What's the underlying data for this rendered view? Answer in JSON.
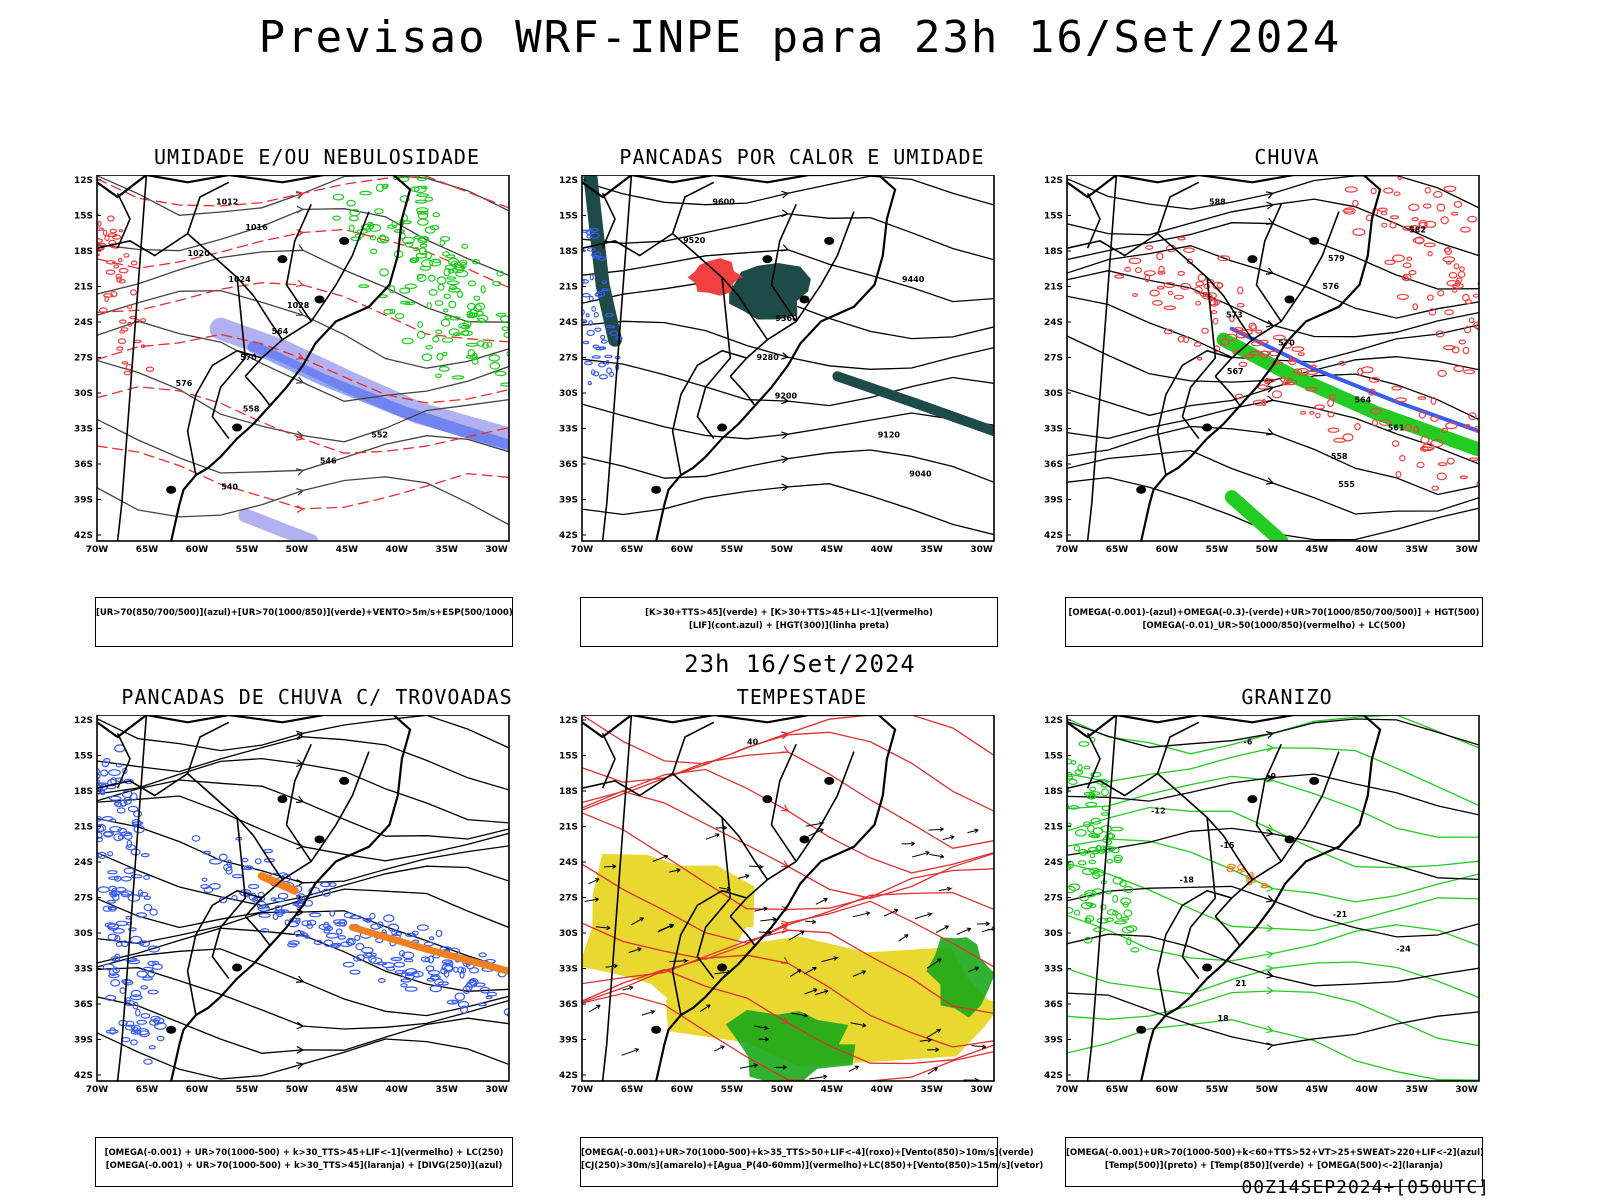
{
  "header": {
    "title": "Previsao WRF-INPE  para 23h 16/Set/2024"
  },
  "middle_title": "23h 16/Set/2024",
  "footer": "00Z14SEP2024+[050UTC]",
  "axes": {
    "lat_labels": [
      "12S",
      "15S",
      "18S",
      "21S",
      "24S",
      "27S",
      "30S",
      "33S",
      "36S",
      "39S",
      "42S"
    ],
    "lon_labels": [
      "70W",
      "65W",
      "60W",
      "55W",
      "50W",
      "45W",
      "40W",
      "35W",
      "30W"
    ]
  },
  "colors": {
    "blue": "#3a5cf0",
    "green": "#22cc22",
    "red": "#f04040",
    "orange": "#f08020",
    "yellow": "#e8d830",
    "darkteal": "#1e4a48",
    "lavender": "#a8a8f0"
  },
  "panels": [
    {
      "title": "UMIDADE E/OU NEBULOSIDADE",
      "legend": [
        "[UR>70(850/700/500)](azul)+[UR>70(1000/850)](verde)+VENTO>5m/s+ESP(500/1000)"
      ],
      "contour_labels": [
        "1012",
        "1016",
        "1020",
        "1024",
        "1028",
        "564",
        "570",
        "576",
        "558",
        "552",
        "546",
        "540"
      ]
    },
    {
      "title": "PANCADAS POR CALOR E UMIDADE",
      "legend": [
        "[K>30+TTS>45](verde) + [K>30+TTS>45+LI<-1](vermelho)",
        "[LIF](cont.azul) + [HGT(300)](linha preta)"
      ],
      "contour_labels": [
        "9600",
        "9520",
        "9440",
        "9360",
        "9280",
        "9200",
        "9120",
        "9040"
      ]
    },
    {
      "title": "CHUVA",
      "legend": [
        "[OMEGA(-0.001)-(azul)+OMEGA(-0.3)-(verde)+UR>70(1000/850/700/500)] + HGT(500)",
        "[OMEGA(-0.01)_UR>50(1000/850)(vermelho) + LC(500)"
      ],
      "contour_labels": [
        "588",
        "582",
        "579",
        "576",
        "573",
        "570",
        "567",
        "564",
        "561",
        "558",
        "555"
      ]
    },
    {
      "title": "PANCADAS DE CHUVA C/ TROVOADAS",
      "legend": [
        "[OMEGA(-0.001) + UR>70(1000-500) + k>30_TTS>45+LIF<-1](vermelho) + LC(250)",
        "[OMEGA(-0.001) + UR>70(1000-500) + k>30_TTS>45](laranja) + [DIVG(250)](azul)"
      ],
      "contour_labels": []
    },
    {
      "title": "TEMPESTADE",
      "legend": [
        "[OMEGA(-0.001)+UR>70(1000-500)+k>35_TTS>50+LIF<-4](roxo)+[Vento(850)>10m/s](verde)",
        "[CJ(250)>30m/s](amarelo)+[Agua_P(40-60mm)](vermelho)+LC(850)+[Vento(850)>15m/s](vetor)"
      ],
      "contour_labels": [
        "40"
      ]
    },
    {
      "title": "GRANIZO",
      "legend": [
        "[OMEGA(-0.001)+UR>70(1000-500)+k<60+TTS>52+VT>25+SWEAT>220+LIF<-2](azul)",
        "[Temp(500)](preto) + [Temp(850)](verde) + [OMEGA(500)<-2](laranja)"
      ],
      "contour_labels": [
        "-6",
        "-9",
        "-12",
        "-15",
        "-18",
        "-21",
        "-24",
        "21",
        "18"
      ]
    }
  ]
}
